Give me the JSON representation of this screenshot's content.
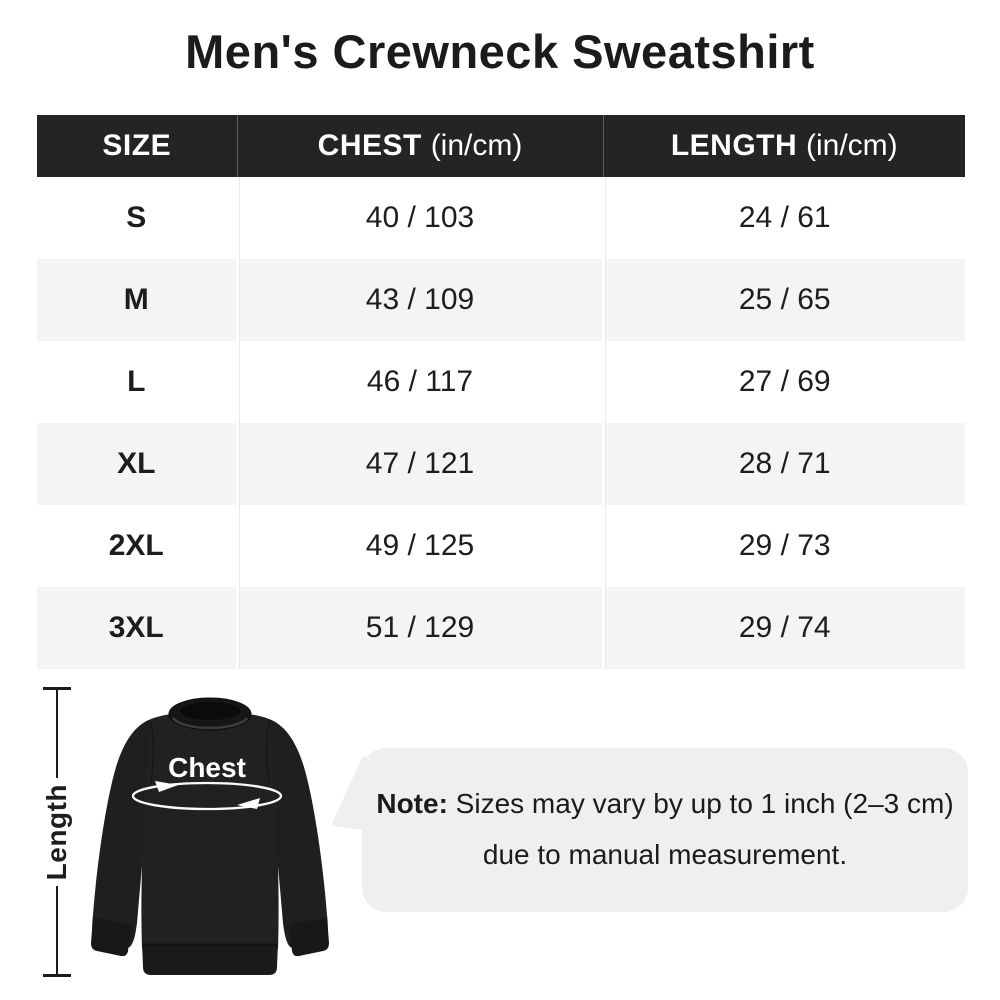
{
  "title": "Men's Crewneck Sweatshirt",
  "table": {
    "header": {
      "size": "SIZE",
      "chest": "CHEST",
      "chest_unit": "(in/cm)",
      "length": "LENGTH",
      "length_unit": "(in/cm)"
    }
  },
  "chart_data": {
    "type": "table",
    "title": "Men's Crewneck Sweatshirt",
    "columns": [
      "SIZE",
      "CHEST (in/cm)",
      "LENGTH (in/cm)"
    ],
    "rows": [
      [
        "S",
        "40 / 103",
        "24 / 61"
      ],
      [
        "M",
        "43 / 109",
        "25 / 65"
      ],
      [
        "L",
        "46 / 117",
        "27 / 69"
      ],
      [
        "XL",
        "47 / 121",
        "28 / 71"
      ],
      [
        "2XL",
        "49 / 125",
        "29 / 73"
      ],
      [
        "3XL",
        "51 / 129",
        "29 / 74"
      ]
    ]
  },
  "diagram": {
    "length_label": "Length",
    "chest_label": "Chest"
  },
  "note": {
    "label": "Note:",
    "text1": " Sizes may vary by up to 1 inch (2–3 cm)",
    "text2": "due to manual measurement."
  },
  "colors": {
    "header_bg": "#242424",
    "row_alt_bg": "#f4f4f4",
    "bubble_bg": "#efefef",
    "text": "#1d1d1d",
    "garment": "#1f1f1f"
  }
}
